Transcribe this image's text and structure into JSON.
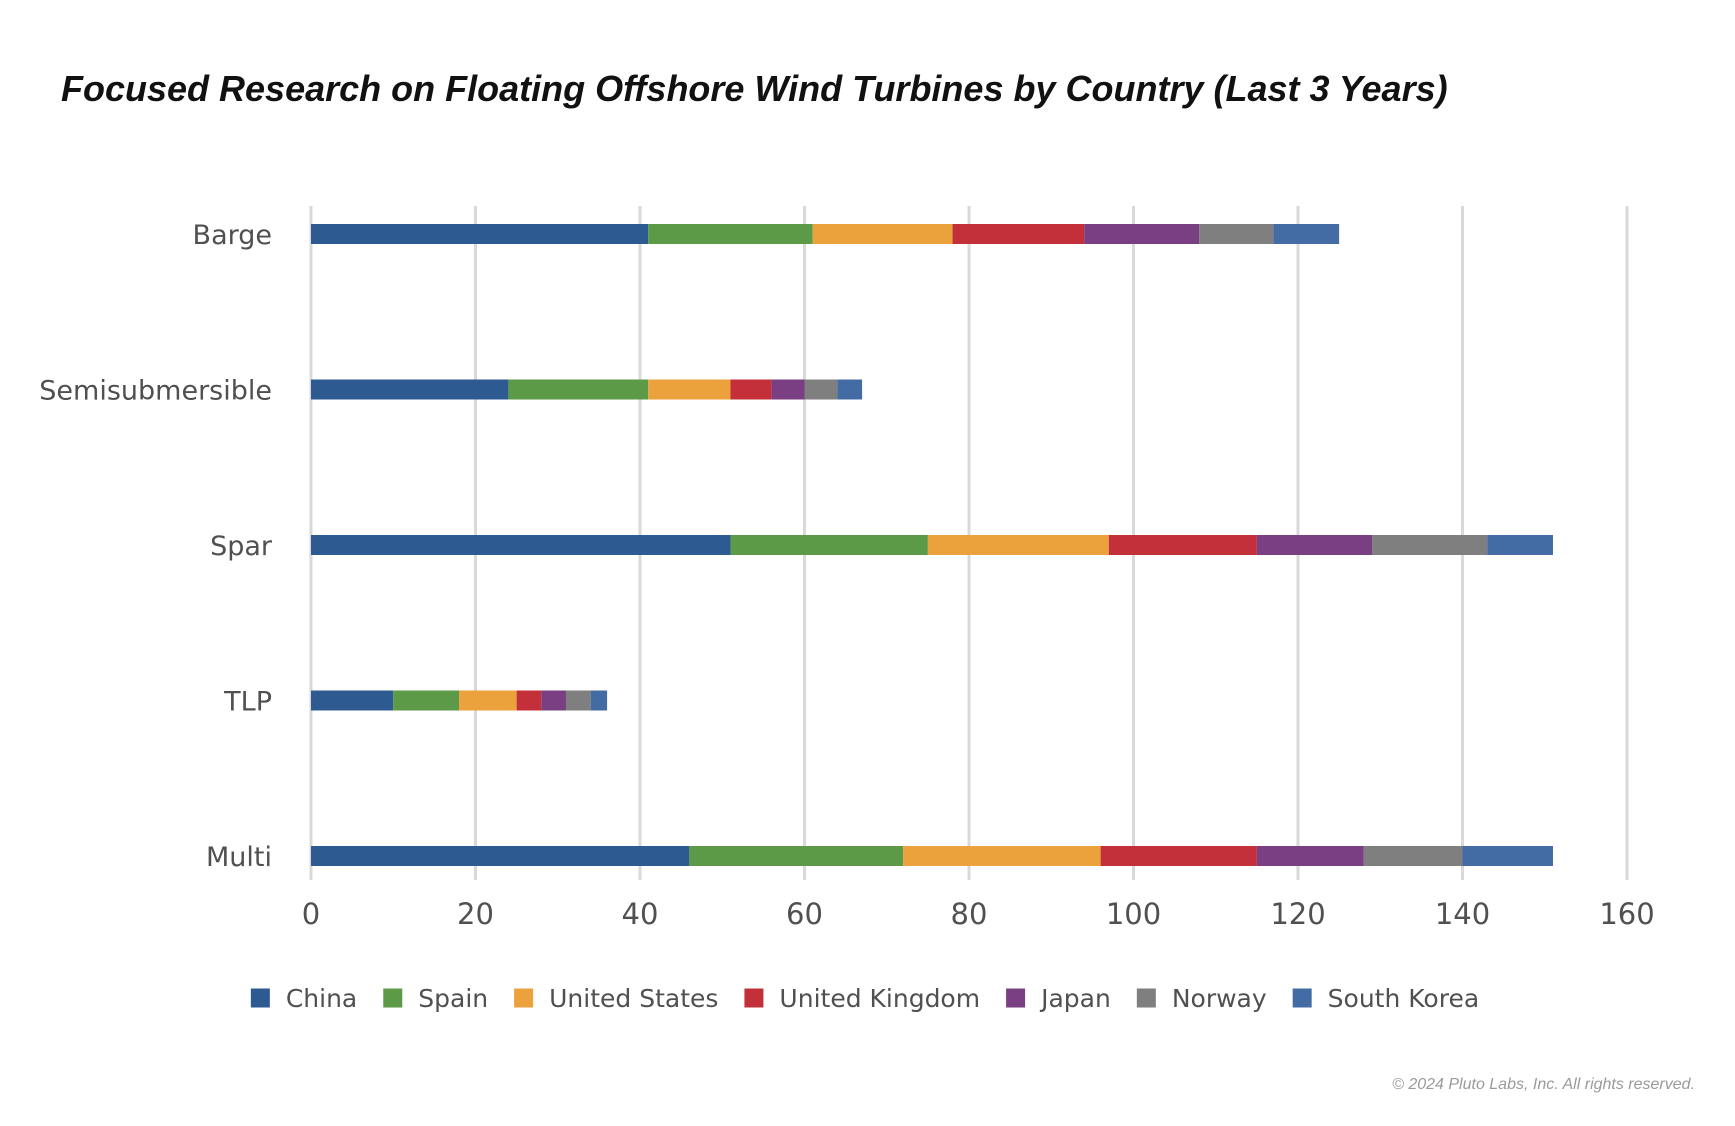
{
  "chart_data": {
    "type": "bar",
    "orientation": "horizontal",
    "stacked": true,
    "title": "Focused Research on Floating Offshore Wind Turbines by Country (Last 3 Years)",
    "xlabel": "",
    "ylabel": "",
    "xlim": [
      0,
      160
    ],
    "x_ticks": [
      0,
      20,
      40,
      60,
      80,
      100,
      120,
      140,
      160
    ],
    "grid": true,
    "legend_position": "bottom",
    "categories": [
      "Barge",
      "Semisubmersible",
      "Spar",
      "TLP",
      "Multi"
    ],
    "series": [
      {
        "name": "China",
        "color": "#2e5a92",
        "values": [
          41,
          24,
          51,
          10,
          46
        ]
      },
      {
        "name": "Spain",
        "color": "#5c9a47",
        "values": [
          20,
          17,
          24,
          8,
          26
        ]
      },
      {
        "name": "United States",
        "color": "#eba13c",
        "values": [
          17,
          10,
          22,
          7,
          24
        ]
      },
      {
        "name": "United Kingdom",
        "color": "#c4303a",
        "values": [
          16,
          5,
          18,
          3,
          19
        ]
      },
      {
        "name": "Japan",
        "color": "#7a3f82",
        "values": [
          14,
          4,
          14,
          3,
          13
        ]
      },
      {
        "name": "Norway",
        "color": "#7f7f7f",
        "values": [
          9,
          4,
          14,
          3,
          12
        ]
      },
      {
        "name": "South Korea",
        "color": "#436ca4",
        "values": [
          8,
          3,
          8,
          2,
          11
        ]
      }
    ]
  },
  "footer": {
    "copyright": "© 2024 Pluto Labs, Inc. All rights reserved."
  }
}
